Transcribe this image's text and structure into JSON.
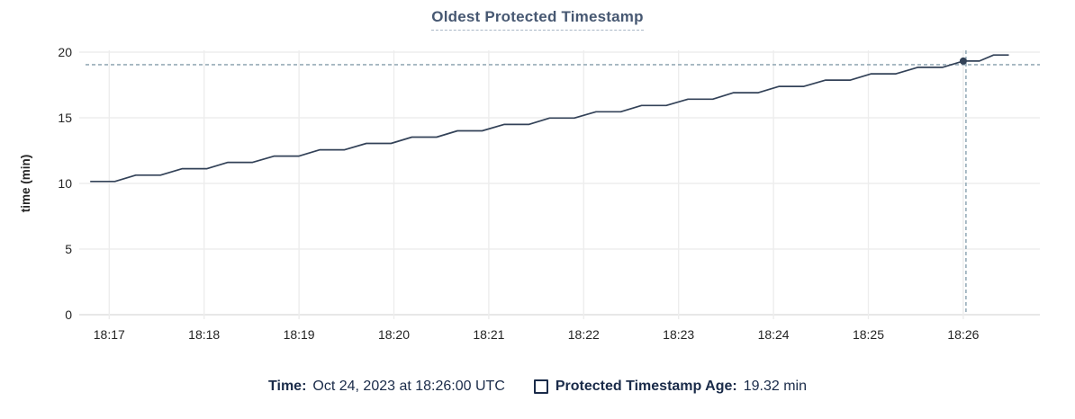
{
  "title": "Oldest Protected Timestamp",
  "colors": {
    "title": "#475872",
    "title_underline": "#a9b7c6",
    "series_line": "#334258",
    "hover_dot": "#334258",
    "crosshair": "#97acb8",
    "gridline": "#ededed",
    "axis_line": "#e7e7e7",
    "tick_text": "#242424",
    "legend_text": "#1a2b49",
    "background": "#ffffff"
  },
  "legend": {
    "time_label": "Time:",
    "time_value": "Oct 24, 2023 at 18:26:00 UTC",
    "series_label": "Protected Timestamp Age:",
    "series_value": "19.32 min"
  },
  "chart_data": {
    "type": "line",
    "title": "Oldest Protected Timestamp",
    "xlabel": "",
    "ylabel": "time (min)",
    "ylim": [
      0,
      20
    ],
    "y_ticks": [
      0,
      5,
      10,
      15,
      20
    ],
    "x_unit": "minutes after 18:17 UTC",
    "x_ticks": [
      {
        "t": 0,
        "label": "18:17"
      },
      {
        "t": 1,
        "label": "18:18"
      },
      {
        "t": 2,
        "label": "18:19"
      },
      {
        "t": 3,
        "label": "18:20"
      },
      {
        "t": 4,
        "label": "18:21"
      },
      {
        "t": 5,
        "label": "18:22"
      },
      {
        "t": 6,
        "label": "18:23"
      },
      {
        "t": 7,
        "label": "18:24"
      },
      {
        "t": 8,
        "label": "18:25"
      },
      {
        "t": 9,
        "label": "18:26"
      }
    ],
    "grid": true,
    "legend_position": "bottom",
    "series": [
      {
        "name": "Protected Timestamp Age",
        "unit": "min",
        "style": "stepped-ramp line",
        "points": [
          [
            -0.2,
            10.15
          ],
          [
            0.06,
            10.15
          ],
          [
            0.28,
            10.63
          ],
          [
            0.54,
            10.63
          ],
          [
            0.77,
            11.12
          ],
          [
            1.03,
            11.12
          ],
          [
            1.25,
            11.6
          ],
          [
            1.51,
            11.6
          ],
          [
            1.74,
            12.08
          ],
          [
            2.0,
            12.08
          ],
          [
            2.22,
            12.56
          ],
          [
            2.48,
            12.56
          ],
          [
            2.71,
            13.05
          ],
          [
            2.97,
            13.05
          ],
          [
            3.19,
            13.53
          ],
          [
            3.45,
            13.53
          ],
          [
            3.67,
            14.01
          ],
          [
            3.93,
            14.01
          ],
          [
            4.16,
            14.49
          ],
          [
            4.42,
            14.49
          ],
          [
            4.64,
            14.98
          ],
          [
            4.9,
            14.98
          ],
          [
            5.13,
            15.46
          ],
          [
            5.39,
            15.46
          ],
          [
            5.61,
            15.94
          ],
          [
            5.87,
            15.94
          ],
          [
            6.1,
            16.42
          ],
          [
            6.36,
            16.42
          ],
          [
            6.58,
            16.91
          ],
          [
            6.84,
            16.91
          ],
          [
            7.06,
            17.39
          ],
          [
            7.32,
            17.39
          ],
          [
            7.55,
            17.87
          ],
          [
            7.81,
            17.87
          ],
          [
            8.03,
            18.35
          ],
          [
            8.29,
            18.35
          ],
          [
            8.52,
            18.84
          ],
          [
            8.78,
            18.84
          ],
          [
            9.0,
            19.32
          ],
          [
            9.17,
            19.32
          ],
          [
            9.32,
            19.78
          ],
          [
            9.48,
            19.78
          ]
        ]
      }
    ],
    "hover_point": {
      "t": 9.0,
      "x_label": "18:26:00",
      "time": "Oct 24, 2023 at 18:26:00 UTC",
      "value": 19.32,
      "value_label": "19.32 min",
      "crosshair": true
    }
  }
}
